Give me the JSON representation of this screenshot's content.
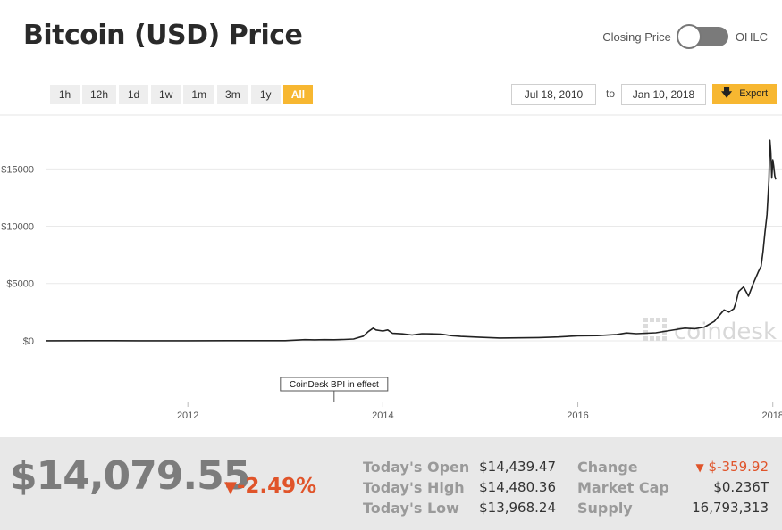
{
  "header": {
    "title": "Bitcoin (USD) Price",
    "toggle": {
      "left_label": "Closing Price",
      "right_label": "OHLC",
      "state": "Closing Price"
    }
  },
  "range_buttons": [
    {
      "label": "1h",
      "active": false
    },
    {
      "label": "12h",
      "active": false
    },
    {
      "label": "1d",
      "active": false
    },
    {
      "label": "1w",
      "active": false
    },
    {
      "label": "1m",
      "active": false
    },
    {
      "label": "3m",
      "active": false
    },
    {
      "label": "1y",
      "active": false
    },
    {
      "label": "All",
      "active": true
    }
  ],
  "date_range": {
    "from": "Jul 18, 2010",
    "to_label": "to",
    "to": "Jan 10, 2018"
  },
  "export": {
    "label": "Export",
    "icon": "download-arrow-icon"
  },
  "colors": {
    "accent": "#f7b731",
    "negative": "#e0542a",
    "line": "#222222",
    "watermark": "#dddddd"
  },
  "chart_data": {
    "type": "line",
    "y_ticks": [
      {
        "value": 0,
        "label": "$0"
      },
      {
        "value": 5000,
        "label": "$5000"
      },
      {
        "value": 10000,
        "label": "$10000"
      },
      {
        "value": 15000,
        "label": "$15000"
      }
    ],
    "x_ticks": [
      {
        "value": 2012.0,
        "label": "2012"
      },
      {
        "value": 2014.0,
        "label": "2014"
      },
      {
        "value": 2016.0,
        "label": "2016"
      },
      {
        "value": 2018.0,
        "label": "2018"
      }
    ],
    "xlim": [
      2010.55,
      2018.03
    ],
    "ylim": [
      -5300,
      19700
    ],
    "grid": "horizontal",
    "series": [
      {
        "x": [
          2010.55,
          2011.0,
          2011.5,
          2012.0,
          2012.5,
          2013.0,
          2013.2,
          2013.3,
          2013.4,
          2013.5,
          2013.6,
          2013.7,
          2013.8,
          2013.85,
          2013.9,
          2013.93,
          2014.0,
          2014.05,
          2014.1,
          2014.2,
          2014.3,
          2014.4,
          2014.5,
          2014.6,
          2014.7,
          2014.8,
          2015.0,
          2015.2,
          2015.4,
          2015.6,
          2015.8,
          2016.0,
          2016.2,
          2016.4,
          2016.5,
          2016.6,
          2016.8,
          2017.0,
          2017.1,
          2017.2,
          2017.3,
          2017.4,
          2017.45,
          2017.5,
          2017.55,
          2017.6,
          2017.62,
          2017.65,
          2017.7,
          2017.75,
          2017.8,
          2017.85,
          2017.88,
          2017.9,
          2017.92,
          2017.94,
          2017.96,
          2017.97,
          2017.98,
          2017.99,
          2018.0,
          2018.01,
          2018.02,
          2018.03
        ],
        "y": [
          0,
          10,
          5,
          5,
          10,
          15,
          100,
          80,
          100,
          90,
          110,
          150,
          400,
          800,
          1100,
          950,
          850,
          950,
          650,
          600,
          500,
          620,
          600,
          580,
          450,
          380,
          300,
          240,
          250,
          280,
          330,
          430,
          450,
          550,
          680,
          620,
          700,
          970,
          1100,
          1050,
          1200,
          1700,
          2200,
          2700,
          2500,
          2800,
          3300,
          4300,
          4700,
          3900,
          5000,
          6000,
          6500,
          7800,
          9500,
          11000,
          14000,
          17500,
          16500,
          14200,
          15800,
          15200,
          14400,
          14080
        ]
      }
    ],
    "annotations": [
      {
        "x": 2013.5,
        "label": "CoinDesk BPI in effect"
      }
    ],
    "watermark": "coindesk"
  },
  "footer": {
    "price": "$14,079.55",
    "change_pct": "-2.49%",
    "stats": [
      {
        "label": "Today's Open",
        "value": "$14,439.47"
      },
      {
        "label": "Today's High",
        "value": "$14,480.36"
      },
      {
        "label": "Today's Low",
        "value": "$13,968.24"
      },
      {
        "label": "Change",
        "value": "-359.92",
        "negative": true
      },
      {
        "label": "Market Cap",
        "value": "$0.236T"
      },
      {
        "label": "Supply",
        "value": "16,793,313"
      }
    ]
  }
}
